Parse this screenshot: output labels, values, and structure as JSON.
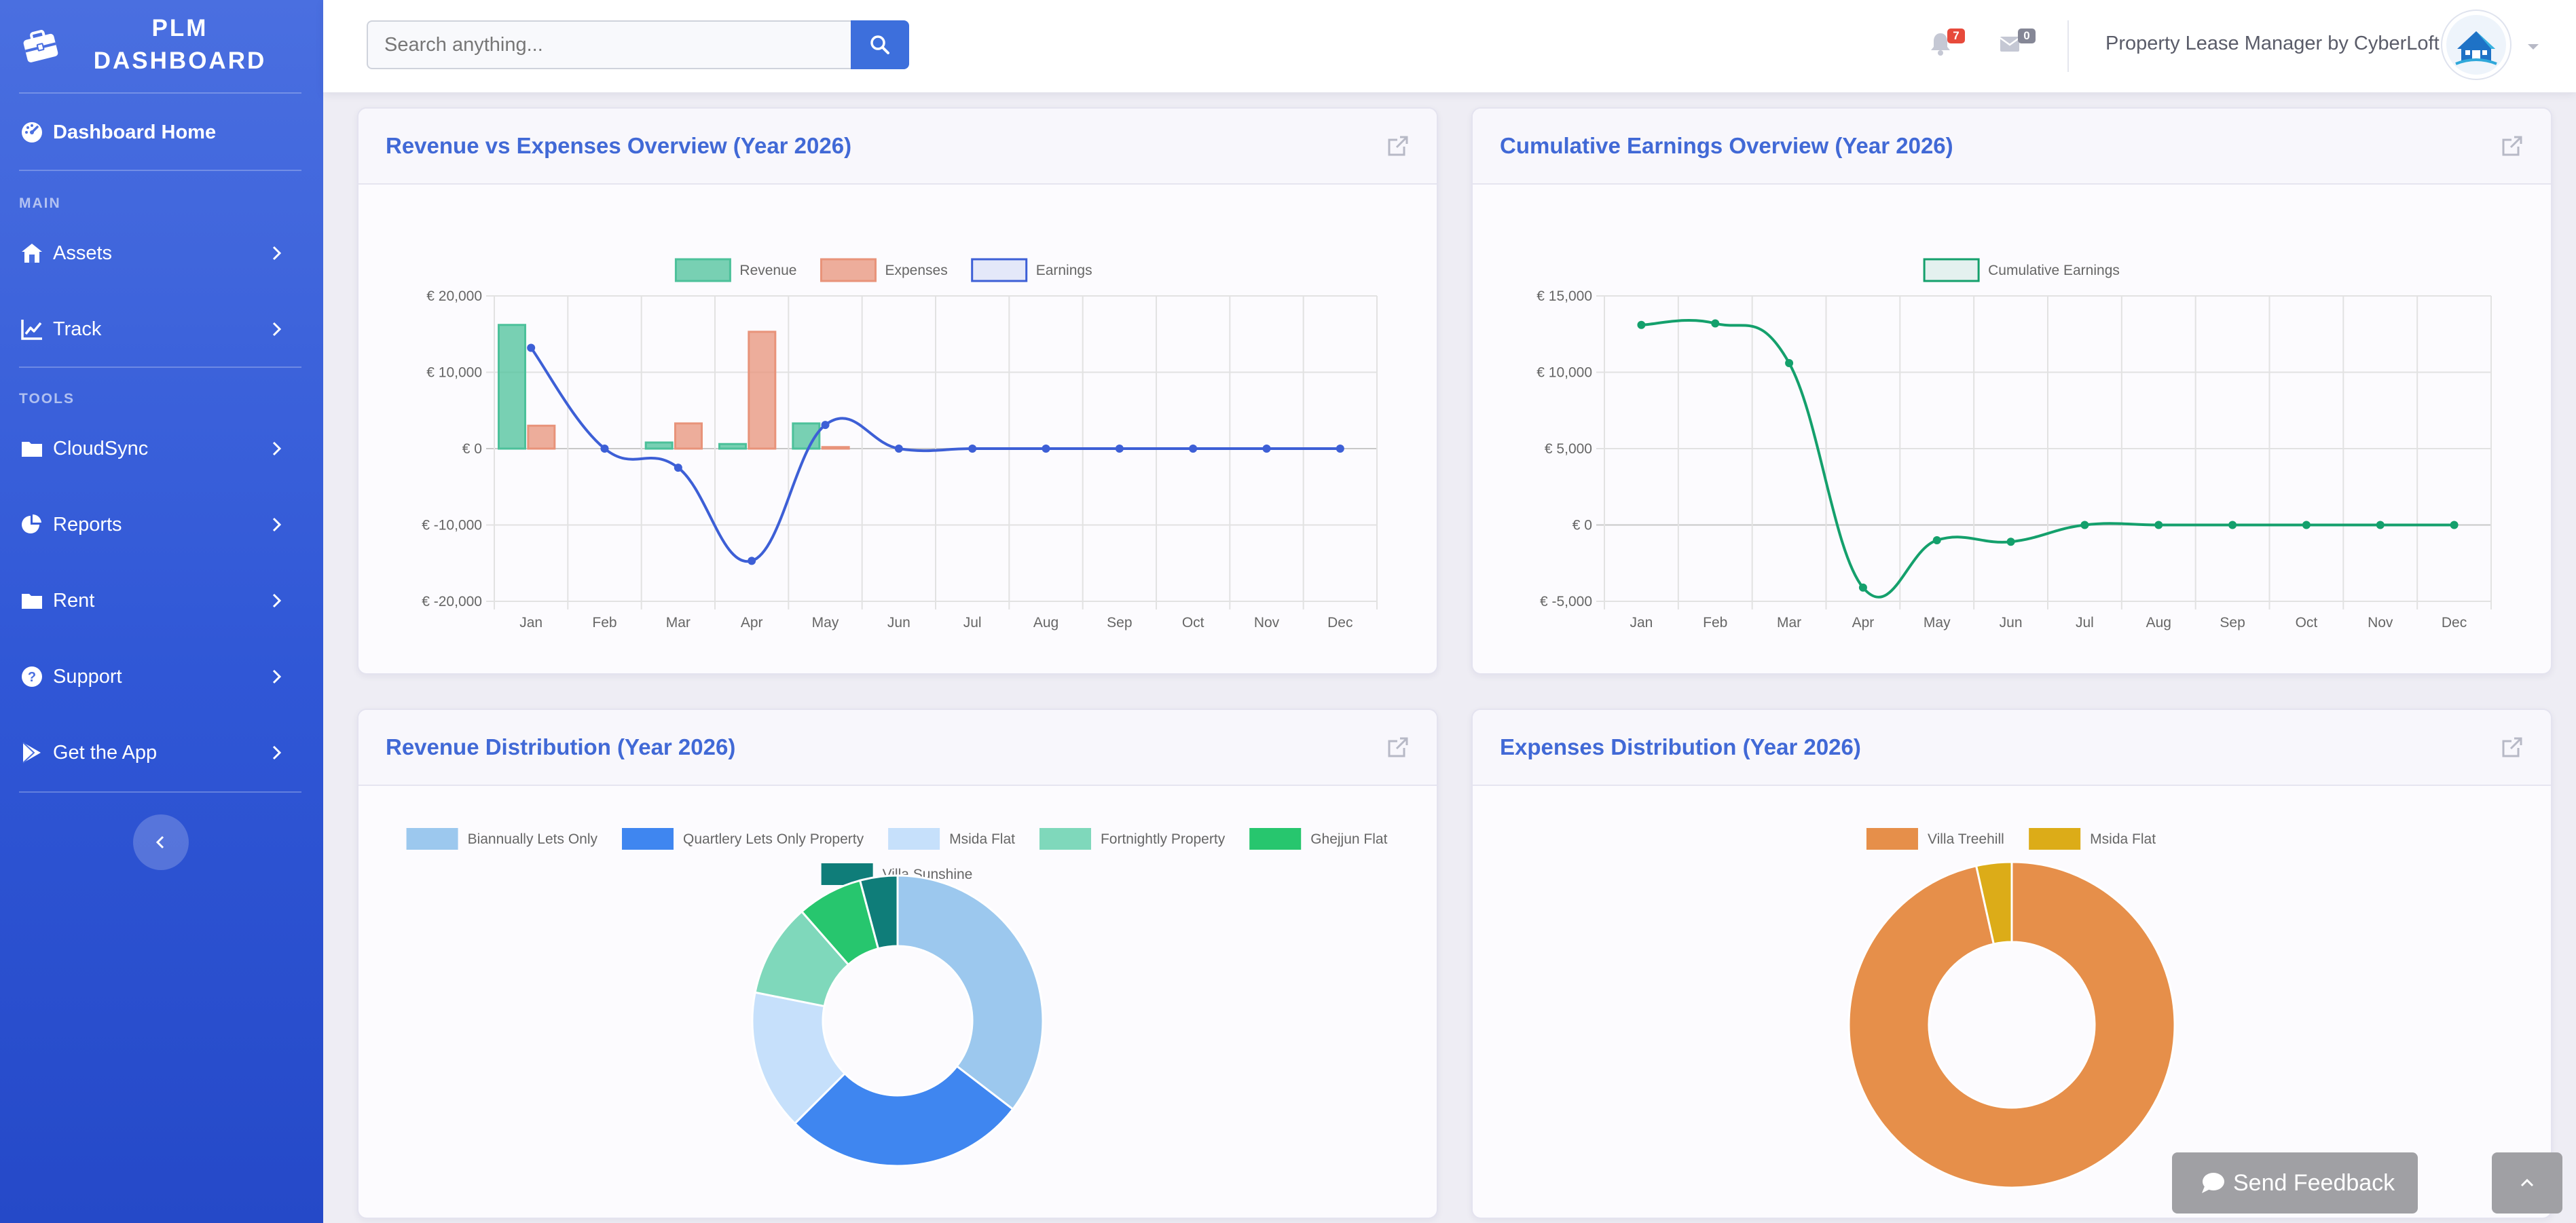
{
  "brand": {
    "line1": "PLM",
    "line2": "DASHBOARD"
  },
  "sidebar": {
    "home": {
      "label": "Dashboard Home"
    },
    "section_main": "MAIN",
    "section_tools": "TOOLS",
    "main_items": [
      {
        "label": "Assets",
        "icon": "house-icon"
      },
      {
        "label": "Track",
        "icon": "line-chart-icon"
      }
    ],
    "tool_items": [
      {
        "label": "CloudSync",
        "icon": "folder-icon"
      },
      {
        "label": "Reports",
        "icon": "pie-chart-icon"
      },
      {
        "label": "Rent",
        "icon": "folder-icon"
      },
      {
        "label": "Support",
        "icon": "question-icon"
      },
      {
        "label": "Get the App",
        "icon": "play-store-icon"
      }
    ]
  },
  "header": {
    "search_placeholder": "Search anything...",
    "notifications_count": "7",
    "messages_count": "0",
    "user_label": "Property Lease Manager by CyberLoft"
  },
  "cards": {
    "revenue_expenses": {
      "title": "Revenue vs Expenses Overview (Year 2026)"
    },
    "cumulative": {
      "title": "Cumulative Earnings Overview (Year 2026)"
    },
    "revenue_dist": {
      "title": "Revenue Distribution (Year 2026)"
    },
    "expenses_dist": {
      "title": "Expenses Distribution (Year 2026)"
    }
  },
  "feedback": {
    "label": "Send Feedback"
  },
  "colors": {
    "accent": "#4169d6",
    "revenue": "#4cc19a",
    "expenses": "#e8937a",
    "earnings": "#3d5fd6",
    "cumulative": "#14a06c"
  },
  "chart_data": [
    {
      "id": "revenue_expenses",
      "type": "bar",
      "categories": [
        "Jan",
        "Feb",
        "Mar",
        "Apr",
        "May",
        "Jun",
        "Jul",
        "Aug",
        "Sep",
        "Oct",
        "Nov",
        "Dec"
      ],
      "series": [
        {
          "name": "Revenue",
          "kind": "bar",
          "color": "#4cc19a",
          "values": [
            16200,
            0,
            800,
            600,
            3300,
            0,
            0,
            0,
            0,
            0,
            0,
            0
          ]
        },
        {
          "name": "Expenses",
          "kind": "bar",
          "color": "#e8937a",
          "values": [
            3000,
            0,
            3300,
            15300,
            200,
            0,
            0,
            0,
            0,
            0,
            0,
            0
          ]
        },
        {
          "name": "Earnings",
          "kind": "line",
          "color": "#3d5fd6",
          "values": [
            13200,
            0,
            -2500,
            -14700,
            3100,
            0,
            0,
            0,
            0,
            0,
            0,
            0
          ]
        }
      ],
      "ylim": [
        -20000,
        20000
      ],
      "yticks": [
        20000,
        10000,
        0,
        -10000,
        -20000
      ],
      "ytick_labels": [
        "€ 20,000",
        "€ 10,000",
        "€ 0",
        "€ -10,000",
        "€ -20,000"
      ],
      "grid": true,
      "legend": "top"
    },
    {
      "id": "cumulative",
      "type": "line",
      "categories": [
        "Jan",
        "Feb",
        "Mar",
        "Apr",
        "May",
        "Jun",
        "Jul",
        "Aug",
        "Sep",
        "Oct",
        "Nov",
        "Dec"
      ],
      "series": [
        {
          "name": "Cumulative Earnings",
          "color": "#14a06c",
          "values": [
            13100,
            13200,
            10600,
            -4100,
            -1000,
            -1100,
            0,
            0,
            0,
            0,
            0,
            0
          ]
        }
      ],
      "ylim": [
        -5000,
        15000
      ],
      "yticks": [
        15000,
        10000,
        5000,
        0,
        -5000
      ],
      "ytick_labels": [
        "€ 15,000",
        "€ 10,000",
        "€ 5,000",
        "€ 0",
        "€ -5,000"
      ],
      "grid": true,
      "legend": "top"
    },
    {
      "id": "revenue_dist",
      "type": "pie",
      "donut": true,
      "slices": [
        {
          "label": "Biannually Lets Only",
          "value": 34,
          "color": "#9cc8ee"
        },
        {
          "label": "Quartlery Lets Only Property",
          "value": 26,
          "color": "#3f86f0"
        },
        {
          "label": "Msida Flat",
          "value": 15,
          "color": "#c6e0fb"
        },
        {
          "label": "Fortnightly Property",
          "value": 10,
          "color": "#7fd8bb"
        },
        {
          "label": "Ghejjun Flat",
          "value": 7,
          "color": "#27c66e"
        },
        {
          "label": "Villa Sunshine",
          "value": 4,
          "color": "#0f7d79"
        }
      ],
      "legend": "top"
    },
    {
      "id": "expenses_dist",
      "type": "pie",
      "donut": true,
      "slices": [
        {
          "label": "Villa Treehill",
          "value": 96.5,
          "color": "#e68f4a"
        },
        {
          "label": "Msida Flat",
          "value": 3.5,
          "color": "#dcac18"
        }
      ],
      "legend": "top"
    }
  ]
}
